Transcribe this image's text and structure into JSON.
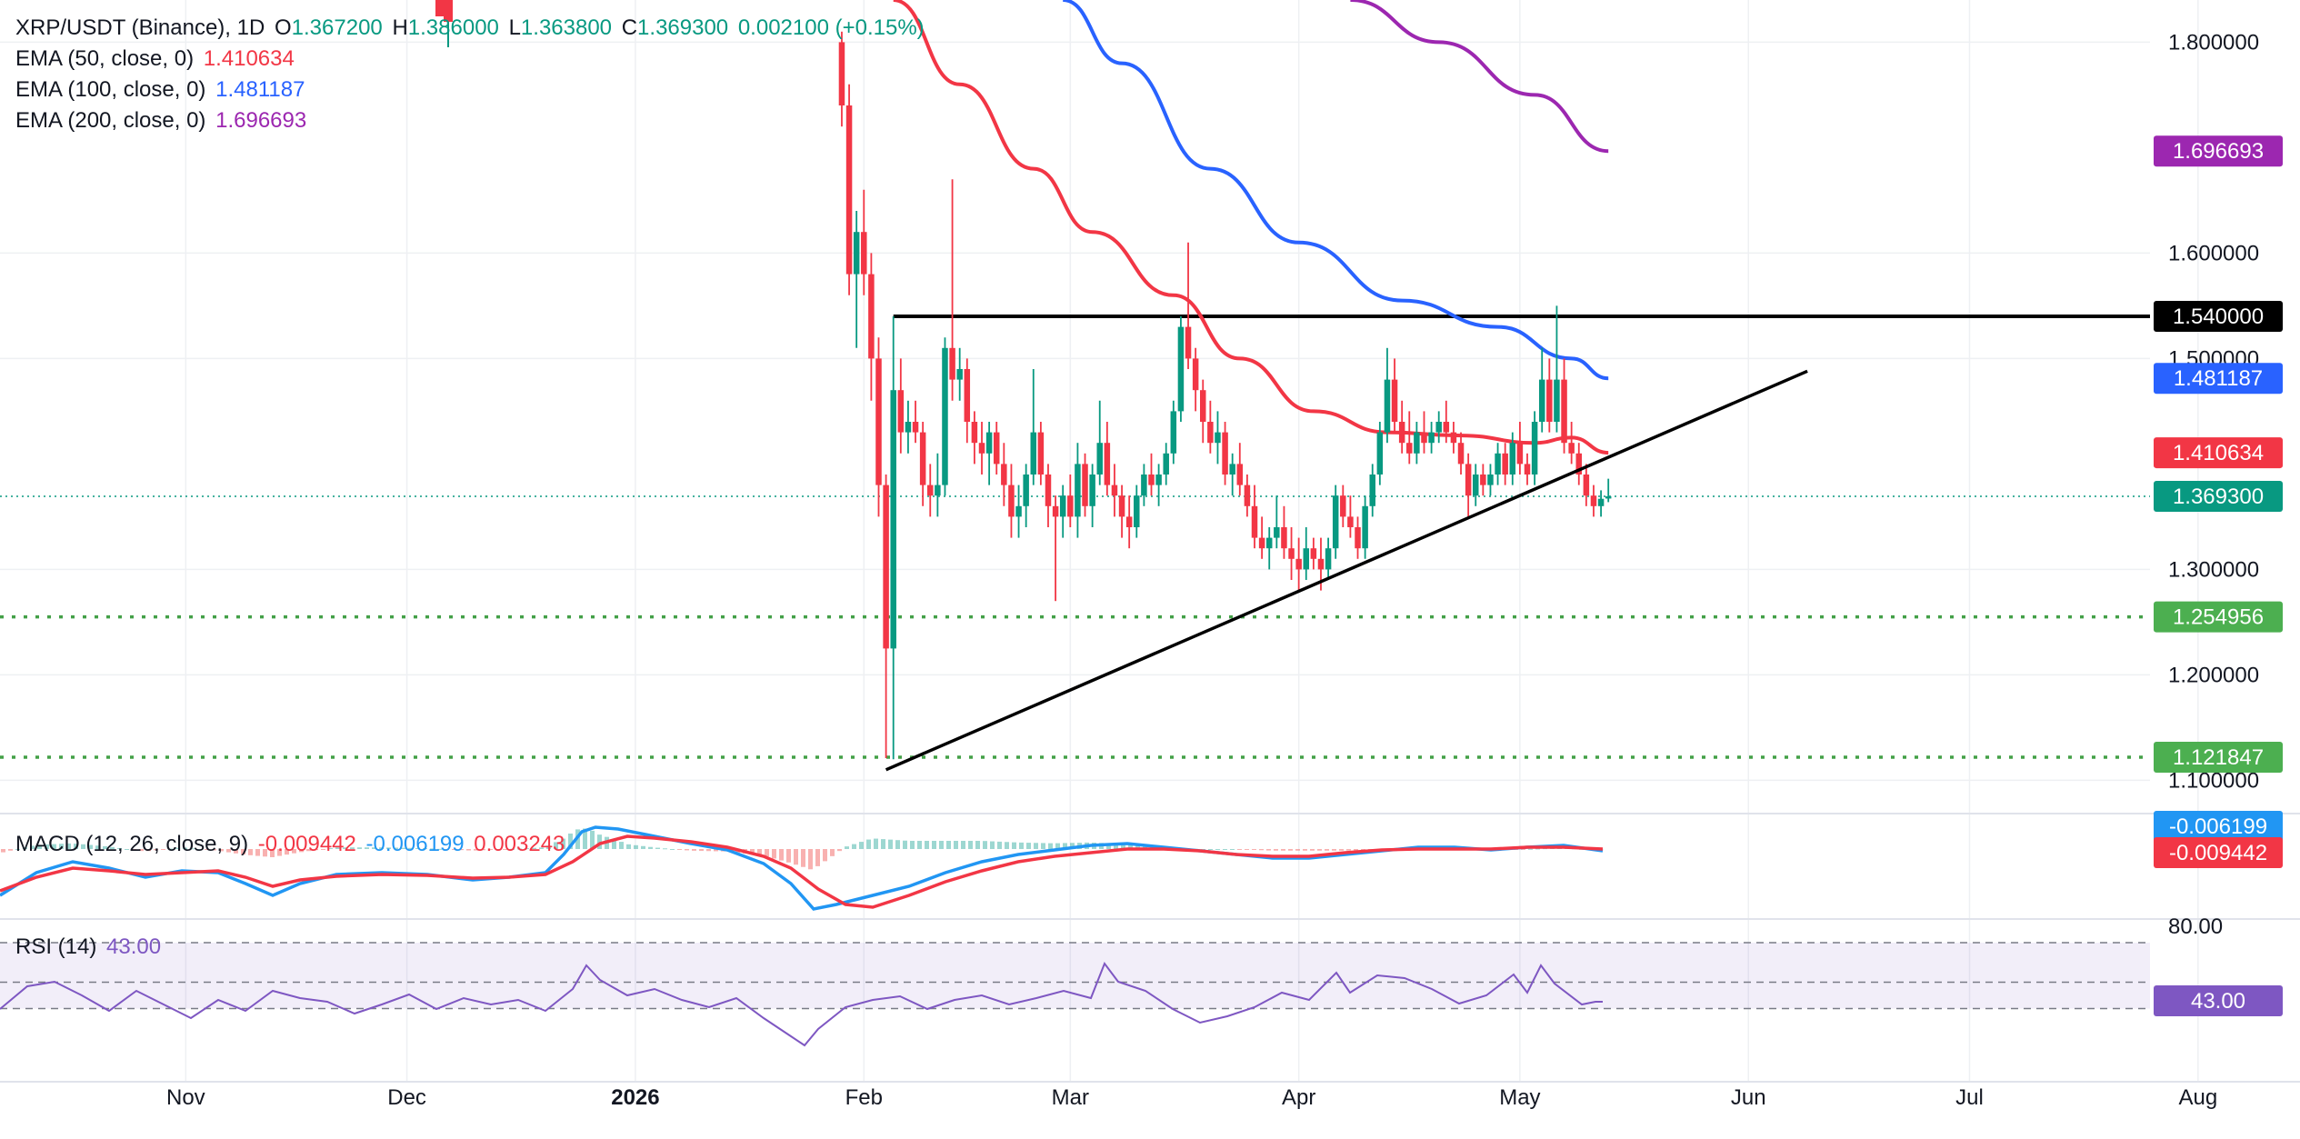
{
  "header": {
    "symbol": "XRP/USDT (Binance), 1D",
    "o_label": "O",
    "o_value": "1.367200",
    "h_label": "H",
    "h_value": "1.386000",
    "l_label": "L",
    "l_value": "1.363800",
    "c_label": "C",
    "c_value": "1.369300",
    "change": "0.002100 (+0.15%)"
  },
  "indicators": {
    "ema50": {
      "label": "EMA (50, close, 0)",
      "value": "1.410634",
      "color": "#f23645"
    },
    "ema100": {
      "label": "EMA (100, close, 0)",
      "value": "1.481187",
      "color": "#2962ff"
    },
    "ema200": {
      "label": "EMA (200, close, 0)",
      "value": "1.696693",
      "color": "#9c27b0"
    },
    "macd": {
      "label": "MACD (12, 26, close, 9)",
      "v1": "-0.009442",
      "v2": "-0.006199",
      "v3": "0.003243",
      "badge_macd": "-0.006199",
      "badge_signal": "-0.009442"
    },
    "rsi": {
      "label": "RSI (14)",
      "value": "43.00",
      "level_label": "80.00",
      "badge": "43.00"
    }
  },
  "colors": {
    "up": "#089981",
    "down": "#f23645",
    "ema50": "#f23645",
    "ema100": "#2962ff",
    "ema200": "#9c27b0",
    "support": "#43a047",
    "price": "#089981",
    "rsi": "#7e57c2"
  },
  "chart_data": {
    "type": "candlestick",
    "title": "XRP/USDT (Binance), 1D",
    "y_ticks": [
      "1.800000",
      "1.600000",
      "1.500000",
      "1.300000",
      "1.200000",
      "1.100000"
    ],
    "ylim": [
      1.08,
      1.84
    ],
    "x_ticks": [
      "Nov",
      "Dec",
      "2026",
      "Feb",
      "Mar",
      "Apr",
      "May",
      "Jun",
      "Jul",
      "Aug"
    ],
    "price_badges": {
      "ema200": "1.696693",
      "resistance": "1.540000",
      "ema100": "1.481187",
      "ema50": "1.410634",
      "last": "1.369300",
      "support1": "1.254956",
      "support2": "1.121847"
    },
    "horizontal_levels": [
      {
        "name": "resistance",
        "value": 1.54,
        "style": "solid"
      },
      {
        "name": "support1",
        "value": 1.254956,
        "style": "dotted"
      },
      {
        "name": "support2",
        "value": 1.121847,
        "style": "dotted"
      }
    ],
    "trendline": {
      "from": {
        "date": "2026-02-04",
        "value": 1.11
      },
      "to": {
        "date": "2026-06-09",
        "value": 1.488
      }
    },
    "candles": [
      [
        "2026-01-29",
        1.8,
        1.81,
        1.72,
        1.74
      ],
      [
        "2026-01-30",
        1.74,
        1.76,
        1.56,
        1.58
      ],
      [
        "2026-01-31",
        1.58,
        1.64,
        1.51,
        1.62
      ],
      [
        "2026-02-01",
        1.62,
        1.66,
        1.56,
        1.58
      ],
      [
        "2026-02-02",
        1.58,
        1.6,
        1.46,
        1.5
      ],
      [
        "2026-02-03",
        1.5,
        1.52,
        1.35,
        1.38
      ],
      [
        "2026-02-04",
        1.38,
        1.39,
        1.121,
        1.225
      ],
      [
        "2026-02-05",
        1.225,
        1.54,
        1.12,
        1.47
      ],
      [
        "2026-02-06",
        1.47,
        1.5,
        1.41,
        1.43
      ],
      [
        "2026-02-07",
        1.43,
        1.46,
        1.41,
        1.44
      ],
      [
        "2026-02-08",
        1.44,
        1.46,
        1.42,
        1.43
      ],
      [
        "2026-02-09",
        1.43,
        1.44,
        1.36,
        1.38
      ],
      [
        "2026-02-10",
        1.38,
        1.4,
        1.35,
        1.37
      ],
      [
        "2026-02-11",
        1.37,
        1.41,
        1.35,
        1.38
      ],
      [
        "2026-02-12",
        1.38,
        1.52,
        1.37,
        1.51
      ],
      [
        "2026-02-13",
        1.51,
        1.67,
        1.46,
        1.48
      ],
      [
        "2026-02-14",
        1.48,
        1.51,
        1.46,
        1.49
      ],
      [
        "2026-02-15",
        1.49,
        1.5,
        1.42,
        1.44
      ],
      [
        "2026-02-16",
        1.44,
        1.45,
        1.4,
        1.42
      ],
      [
        "2026-02-17",
        1.42,
        1.44,
        1.39,
        1.41
      ],
      [
        "2026-02-18",
        1.41,
        1.44,
        1.38,
        1.43
      ],
      [
        "2026-02-19",
        1.43,
        1.44,
        1.39,
        1.4
      ],
      [
        "2026-02-20",
        1.4,
        1.42,
        1.36,
        1.38
      ],
      [
        "2026-02-21",
        1.38,
        1.4,
        1.33,
        1.35
      ],
      [
        "2026-02-22",
        1.35,
        1.38,
        1.33,
        1.36
      ],
      [
        "2026-02-23",
        1.36,
        1.4,
        1.34,
        1.39
      ],
      [
        "2026-02-24",
        1.39,
        1.49,
        1.38,
        1.43
      ],
      [
        "2026-02-25",
        1.43,
        1.44,
        1.38,
        1.39
      ],
      [
        "2026-02-26",
        1.39,
        1.4,
        1.34,
        1.36
      ],
      [
        "2026-02-27",
        1.36,
        1.37,
        1.27,
        1.35
      ],
      [
        "2026-02-28",
        1.35,
        1.38,
        1.33,
        1.37
      ],
      [
        "2026-03-01",
        1.37,
        1.39,
        1.34,
        1.35
      ],
      [
        "2026-03-02",
        1.35,
        1.42,
        1.33,
        1.4
      ],
      [
        "2026-03-03",
        1.4,
        1.41,
        1.35,
        1.36
      ],
      [
        "2026-03-04",
        1.36,
        1.4,
        1.34,
        1.39
      ],
      [
        "2026-03-05",
        1.39,
        1.46,
        1.38,
        1.42
      ],
      [
        "2026-03-06",
        1.42,
        1.44,
        1.37,
        1.38
      ],
      [
        "2026-03-07",
        1.38,
        1.4,
        1.35,
        1.37
      ],
      [
        "2026-03-08",
        1.37,
        1.38,
        1.33,
        1.35
      ],
      [
        "2026-03-09",
        1.35,
        1.37,
        1.32,
        1.34
      ],
      [
        "2026-03-10",
        1.34,
        1.38,
        1.33,
        1.37
      ],
      [
        "2026-03-11",
        1.37,
        1.4,
        1.36,
        1.39
      ],
      [
        "2026-03-12",
        1.39,
        1.41,
        1.37,
        1.38
      ],
      [
        "2026-03-13",
        1.38,
        1.4,
        1.36,
        1.39
      ],
      [
        "2026-03-14",
        1.39,
        1.42,
        1.38,
        1.41
      ],
      [
        "2026-03-15",
        1.41,
        1.46,
        1.4,
        1.45
      ],
      [
        "2026-03-16",
        1.45,
        1.54,
        1.44,
        1.53
      ],
      [
        "2026-03-17",
        1.53,
        1.61,
        1.49,
        1.5
      ],
      [
        "2026-03-18",
        1.5,
        1.51,
        1.45,
        1.47
      ],
      [
        "2026-03-19",
        1.47,
        1.48,
        1.42,
        1.44
      ],
      [
        "2026-03-20",
        1.44,
        1.46,
        1.41,
        1.42
      ],
      [
        "2026-03-21",
        1.42,
        1.45,
        1.4,
        1.43
      ],
      [
        "2026-03-22",
        1.43,
        1.44,
        1.38,
        1.39
      ],
      [
        "2026-03-23",
        1.39,
        1.41,
        1.37,
        1.4
      ],
      [
        "2026-03-24",
        1.4,
        1.42,
        1.37,
        1.38
      ],
      [
        "2026-03-25",
        1.38,
        1.39,
        1.35,
        1.36
      ],
      [
        "2026-03-26",
        1.36,
        1.38,
        1.32,
        1.33
      ],
      [
        "2026-03-27",
        1.33,
        1.35,
        1.31,
        1.32
      ],
      [
        "2026-03-28",
        1.32,
        1.34,
        1.3,
        1.33
      ],
      [
        "2026-03-29",
        1.33,
        1.37,
        1.32,
        1.34
      ],
      [
        "2026-03-30",
        1.34,
        1.36,
        1.31,
        1.32
      ],
      [
        "2026-03-31",
        1.32,
        1.34,
        1.29,
        1.31
      ],
      [
        "2026-04-01",
        1.31,
        1.33,
        1.28,
        1.3
      ],
      [
        "2026-04-02",
        1.3,
        1.34,
        1.29,
        1.32
      ],
      [
        "2026-04-03",
        1.32,
        1.33,
        1.3,
        1.31
      ],
      [
        "2026-04-04",
        1.31,
        1.33,
        1.28,
        1.3
      ],
      [
        "2026-04-05",
        1.3,
        1.33,
        1.29,
        1.32
      ],
      [
        "2026-04-06",
        1.32,
        1.38,
        1.31,
        1.37
      ],
      [
        "2026-04-07",
        1.37,
        1.38,
        1.34,
        1.35
      ],
      [
        "2026-04-08",
        1.35,
        1.37,
        1.33,
        1.34
      ],
      [
        "2026-04-09",
        1.34,
        1.35,
        1.31,
        1.32
      ],
      [
        "2026-04-10",
        1.32,
        1.37,
        1.31,
        1.36
      ],
      [
        "2026-04-11",
        1.36,
        1.4,
        1.35,
        1.39
      ],
      [
        "2026-04-12",
        1.39,
        1.44,
        1.38,
        1.43
      ],
      [
        "2026-04-13",
        1.43,
        1.51,
        1.42,
        1.48
      ],
      [
        "2026-04-14",
        1.48,
        1.5,
        1.43,
        1.44
      ],
      [
        "2026-04-15",
        1.44,
        1.46,
        1.41,
        1.42
      ],
      [
        "2026-04-16",
        1.42,
        1.45,
        1.4,
        1.41
      ],
      [
        "2026-04-17",
        1.41,
        1.44,
        1.4,
        1.43
      ],
      [
        "2026-04-18",
        1.43,
        1.45,
        1.41,
        1.42
      ],
      [
        "2026-04-19",
        1.42,
        1.44,
        1.41,
        1.43
      ],
      [
        "2026-04-20",
        1.43,
        1.45,
        1.42,
        1.44
      ],
      [
        "2026-04-21",
        1.44,
        1.46,
        1.42,
        1.43
      ],
      [
        "2026-04-22",
        1.43,
        1.44,
        1.41,
        1.42
      ],
      [
        "2026-04-23",
        1.42,
        1.43,
        1.39,
        1.4
      ],
      [
        "2026-04-24",
        1.4,
        1.41,
        1.35,
        1.37
      ],
      [
        "2026-04-25",
        1.37,
        1.4,
        1.36,
        1.39
      ],
      [
        "2026-04-26",
        1.39,
        1.4,
        1.37,
        1.38
      ],
      [
        "2026-04-27",
        1.38,
        1.4,
        1.37,
        1.39
      ],
      [
        "2026-04-28",
        1.39,
        1.42,
        1.38,
        1.41
      ],
      [
        "2026-04-29",
        1.41,
        1.42,
        1.38,
        1.39
      ],
      [
        "2026-04-30",
        1.39,
        1.43,
        1.38,
        1.42
      ],
      [
        "2026-05-01",
        1.42,
        1.44,
        1.39,
        1.4
      ],
      [
        "2026-05-02",
        1.4,
        1.41,
        1.38,
        1.39
      ],
      [
        "2026-05-03",
        1.39,
        1.45,
        1.38,
        1.44
      ],
      [
        "2026-05-04",
        1.44,
        1.51,
        1.43,
        1.48
      ],
      [
        "2026-05-05",
        1.48,
        1.5,
        1.43,
        1.44
      ],
      [
        "2026-05-06",
        1.44,
        1.55,
        1.43,
        1.48
      ],
      [
        "2026-05-07",
        1.48,
        1.5,
        1.41,
        1.42
      ],
      [
        "2026-05-08",
        1.42,
        1.44,
        1.4,
        1.41
      ],
      [
        "2026-05-09",
        1.41,
        1.42,
        1.38,
        1.39
      ],
      [
        "2026-05-10",
        1.39,
        1.4,
        1.36,
        1.37
      ],
      [
        "2026-05-11",
        1.37,
        1.38,
        1.35,
        1.36
      ],
      [
        "2026-05-12",
        1.36,
        1.375,
        1.35,
        1.367
      ],
      [
        "2026-05-13",
        1.3672,
        1.386,
        1.3638,
        1.3693
      ]
    ],
    "ema50": [
      [
        "2026-02-05",
        1.84
      ],
      [
        "2026-02-14",
        1.76
      ],
      [
        "2026-02-24",
        1.68
      ],
      [
        "2026-03-04",
        1.62
      ],
      [
        "2026-03-15",
        1.56
      ],
      [
        "2026-03-24",
        1.5
      ],
      [
        "2026-04-03",
        1.45
      ],
      [
        "2026-04-13",
        1.43
      ],
      [
        "2026-04-23",
        1.427
      ],
      [
        "2026-05-03",
        1.42
      ],
      [
        "2026-05-08",
        1.425
      ],
      [
        "2026-05-13",
        1.410634
      ]
    ],
    "ema100": [
      [
        "2026-02-28",
        1.84
      ],
      [
        "2026-03-08",
        1.78
      ],
      [
        "2026-03-20",
        1.68
      ],
      [
        "2026-04-01",
        1.61
      ],
      [
        "2026-04-15",
        1.555
      ],
      [
        "2026-04-28",
        1.53
      ],
      [
        "2026-05-08",
        1.5
      ],
      [
        "2026-05-13",
        1.481187
      ]
    ],
    "ema200": [
      [
        "2026-04-08",
        1.84
      ],
      [
        "2026-04-20",
        1.8
      ],
      [
        "2026-05-03",
        1.75
      ],
      [
        "2026-05-13",
        1.696693
      ]
    ],
    "rsi": {
      "levels": [
        80,
        50,
        30
      ],
      "last": 43.0
    }
  }
}
